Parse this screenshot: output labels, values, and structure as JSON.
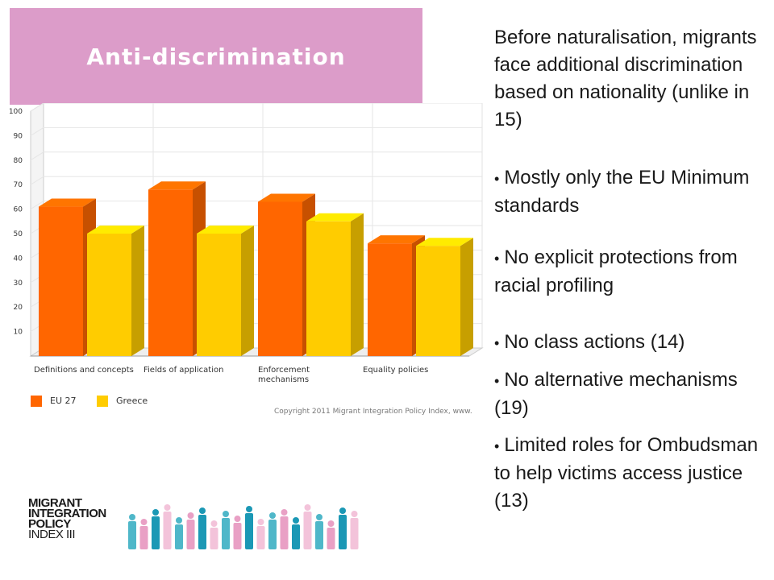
{
  "title": "Anti-discrimination",
  "chart_data": {
    "type": "bar",
    "categories": [
      "Definitions and concepts",
      "Fields of application",
      "Enforcement\nmechanisms",
      "Equality policies"
    ],
    "series": [
      {
        "name": "EU 27",
        "values": [
          61,
          68,
          63,
          46
        ],
        "color": "#ff6600"
      },
      {
        "name": "Greece",
        "values": [
          50,
          50,
          55,
          45
        ],
        "color": "#ffcc00"
      }
    ],
    "yticks": [
      10,
      20,
      30,
      40,
      50,
      60,
      70,
      80,
      90,
      100
    ],
    "ylim": [
      0,
      100
    ],
    "grid": true,
    "legend_position": "bottom-left",
    "copyright": "Copyright 2011 Migrant Integration Policy Index, www."
  },
  "text": {
    "intro": "Before naturalisation, migrants face additional discrimination based on nationality (unlike in 15)",
    "bullets": [
      "Mostly only the EU Minimum standards",
      "No explicit protections from racial profiling",
      "No class actions (14)",
      "No alternative mechanisms (19)",
      "Limited roles for Ombudsman to help victims access justice (13)"
    ],
    "bullet_char": "•"
  },
  "logo": {
    "line1": "MIGRANT",
    "line2": "INTEGRATION",
    "line3": "POLICY",
    "line4": "INDEX III",
    "colors": [
      "#4fb7c9",
      "#e9a0c5",
      "#1b98b5",
      "#f3c3da"
    ]
  }
}
